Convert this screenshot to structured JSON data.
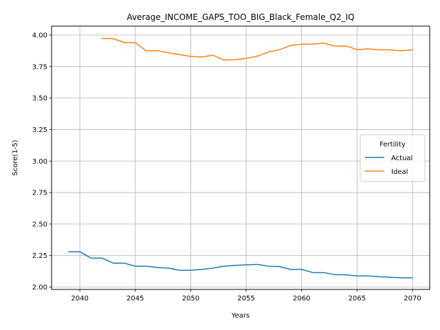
{
  "chart_data": {
    "type": "line",
    "title": "Average_INCOME_GAPS_TOO_BIG_Black_Female_Q2_IQ",
    "xlabel": "Years",
    "ylabel": "Score(1-5)",
    "xlim": [
      2037.45,
      2071.55
    ],
    "ylim": [
      1.981,
      4.071
    ],
    "xticks": [
      2040,
      2045,
      2050,
      2055,
      2060,
      2065,
      2070
    ],
    "yticks": [
      2.0,
      2.25,
      2.5,
      2.75,
      3.0,
      3.25,
      3.5,
      3.75,
      4.0
    ],
    "grid": true,
    "legend": {
      "title": "Fertility",
      "placement": "center-right"
    },
    "series": [
      {
        "name": "Actual",
        "color": "#1f77b4",
        "x": [
          2039,
          2040,
          2041,
          2042,
          2043,
          2044,
          2045,
          2046,
          2047,
          2048,
          2049,
          2050,
          2051,
          2052,
          2053,
          2054,
          2055,
          2056,
          2057,
          2058,
          2059,
          2060,
          2061,
          2062,
          2063,
          2064,
          2065,
          2066,
          2067,
          2068,
          2069,
          2070
        ],
        "y": [
          2.28,
          2.28,
          2.23,
          2.23,
          2.19,
          2.19,
          2.165,
          2.165,
          2.155,
          2.15,
          2.133,
          2.133,
          2.14,
          2.15,
          2.165,
          2.172,
          2.176,
          2.18,
          2.165,
          2.163,
          2.14,
          2.14,
          2.115,
          2.115,
          2.098,
          2.097,
          2.088,
          2.088,
          2.082,
          2.078,
          2.073,
          2.073
        ]
      },
      {
        "name": "Ideal",
        "color": "#ff7f0e",
        "x": [
          2042,
          2043,
          2044,
          2045,
          2046,
          2047,
          2048,
          2049,
          2050,
          2051,
          2052,
          2053,
          2054,
          2055,
          2056,
          2057,
          2058,
          2059,
          2060,
          2061,
          2062,
          2063,
          2064,
          2065,
          2066,
          2067,
          2068,
          2069,
          2070
        ],
        "y": [
          3.972,
          3.972,
          3.94,
          3.94,
          3.875,
          3.875,
          3.86,
          3.845,
          3.83,
          3.826,
          3.84,
          3.802,
          3.804,
          3.815,
          3.832,
          3.866,
          3.883,
          3.918,
          3.928,
          3.928,
          3.936,
          3.913,
          3.913,
          3.885,
          3.89,
          3.883,
          3.882,
          3.875,
          3.883
        ]
      }
    ]
  }
}
